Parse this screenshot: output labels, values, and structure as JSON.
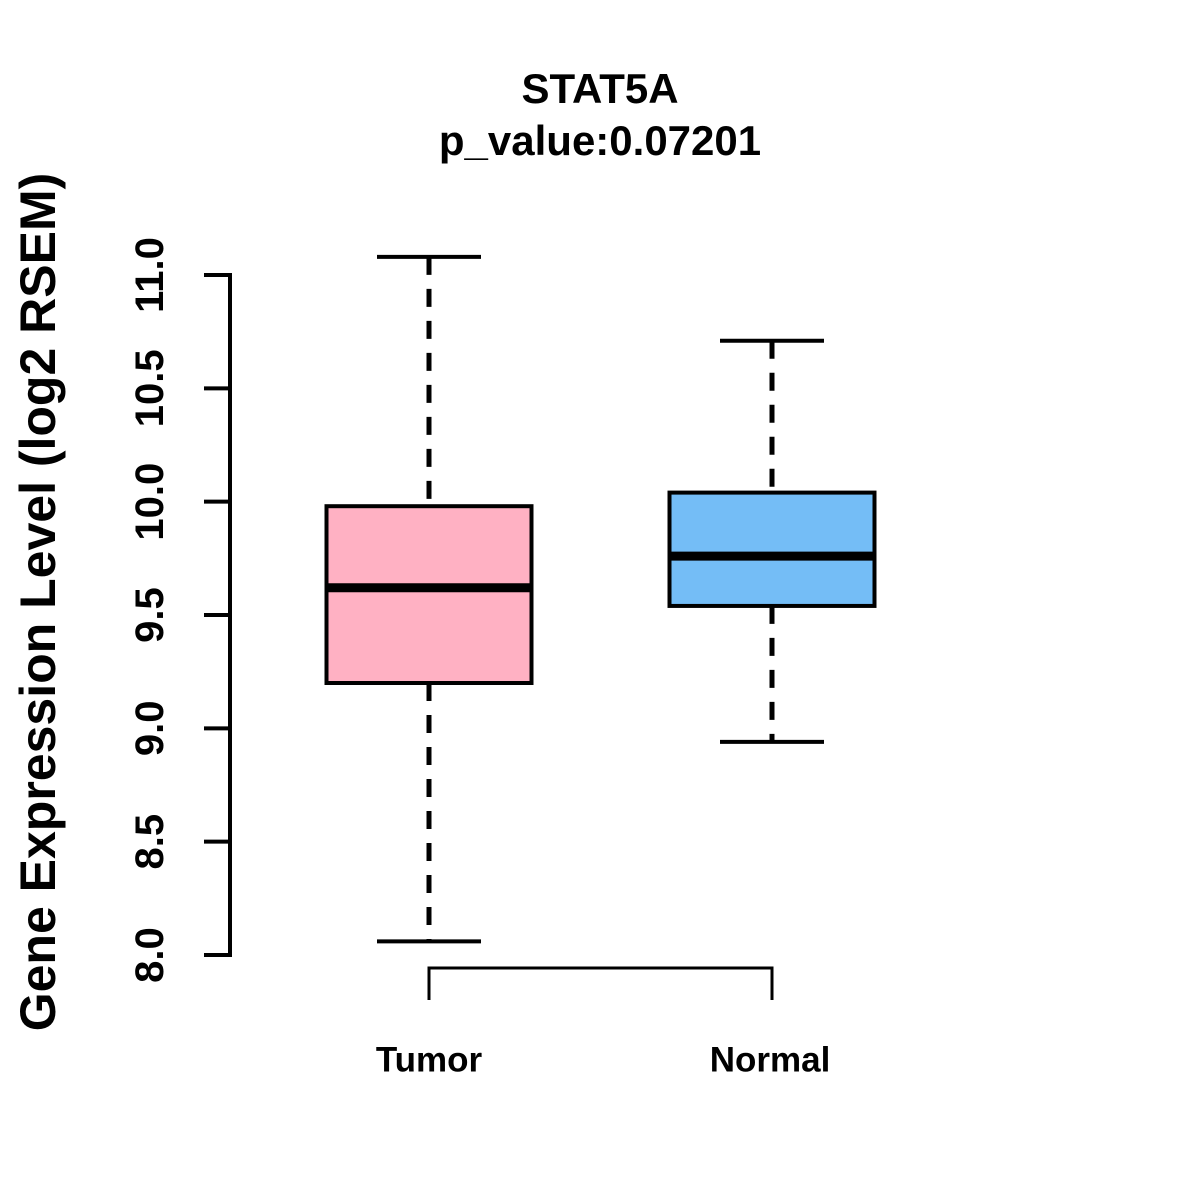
{
  "title": "STAT5A",
  "subtitle": "p_value:0.07201",
  "chart_data": {
    "type": "boxplot",
    "title": "STAT5A",
    "subtitle": "p_value:0.07201",
    "xlabel": "",
    "ylabel": "Gene Expression Level (log2 RSEM)",
    "ylim": [
      8.0,
      11.0
    ],
    "y_ticks": [
      "8.0",
      "8.5",
      "9.0",
      "9.5",
      "10.0",
      "10.5",
      "11.0"
    ],
    "grid": "off",
    "legend": "none",
    "groups": [
      {
        "label": "Tumor",
        "fill_color": "#FFB1C3",
        "whisker_low": 8.06,
        "q1": 9.2,
        "median": 9.62,
        "q3": 9.98,
        "whisker_high": 11.08
      },
      {
        "label": "Normal",
        "fill_color": "#74BDF6",
        "whisker_low": 8.94,
        "q1": 9.54,
        "median": 9.76,
        "q3": 10.04,
        "whisker_high": 10.71
      }
    ],
    "colors": {
      "axis": "#000000",
      "box_border": "#000000",
      "median_line": "#000000",
      "tumor_fill": "#FFB1C3",
      "normal_fill": "#74BDF6",
      "background": "#FFFFFF"
    }
  }
}
